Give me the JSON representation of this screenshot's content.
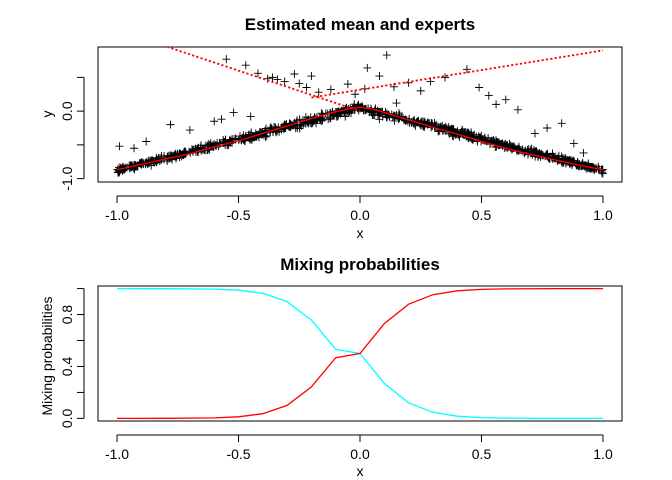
{
  "chart_data": [
    {
      "type": "scatter",
      "title": "Estimated mean and experts",
      "xlabel": "x",
      "ylabel": "y",
      "xlim": [
        -1.0,
        1.0
      ],
      "ylim": [
        -1.05,
        0.95
      ],
      "x_ticks": [
        -1.0,
        -0.5,
        0.0,
        0.5,
        1.0
      ],
      "x_tick_labels": [
        "-1.0",
        "-0.5",
        "0.0",
        "0.5",
        "1.0"
      ],
      "y_ticks": [
        -1.0,
        -0.5,
        0.0,
        0.5
      ],
      "y_tick_labels": [
        "-1.0",
        "",
        "0.0",
        ""
      ],
      "grid": false,
      "series": [
        {
          "kind": "points",
          "marker": "+",
          "color": "#000000",
          "description": "noisy observations concentrated along y = 0.05 - 0.95*|x| with scattered outliers",
          "outliers": [
            [
              -0.55,
              0.77
            ],
            [
              -0.47,
              0.68
            ],
            [
              -0.42,
              0.56
            ],
            [
              -0.38,
              0.48
            ],
            [
              -0.36,
              0.5
            ],
            [
              -0.34,
              0.47
            ],
            [
              -0.31,
              0.44
            ],
            [
              -0.27,
              0.55
            ],
            [
              -0.25,
              0.41
            ],
            [
              -0.22,
              0.35
            ],
            [
              -0.2,
              0.52
            ],
            [
              -0.17,
              0.28
            ],
            [
              -0.12,
              0.32
            ],
            [
              -0.05,
              0.4
            ],
            [
              0.03,
              0.64
            ],
            [
              0.08,
              0.52
            ],
            [
              0.11,
              0.83
            ],
            [
              0.14,
              0.36
            ],
            [
              0.2,
              0.42
            ],
            [
              0.25,
              0.3
            ],
            [
              0.29,
              0.44
            ],
            [
              0.35,
              0.5
            ],
            [
              0.44,
              0.62
            ],
            [
              0.49,
              0.35
            ],
            [
              0.53,
              0.23
            ],
            [
              0.56,
              0.1
            ],
            [
              0.6,
              0.17
            ],
            [
              0.65,
              0.02
            ],
            [
              0.77,
              -0.25
            ],
            [
              0.83,
              -0.18
            ],
            [
              0.88,
              -0.48
            ],
            [
              -0.52,
              -0.02
            ],
            [
              -0.57,
              -0.12
            ],
            [
              -0.78,
              -0.2
            ],
            [
              -0.93,
              -0.55
            ],
            [
              -0.99,
              -0.52
            ],
            [
              -0.88,
              -0.45
            ],
            [
              -0.7,
              -0.28
            ],
            [
              -0.6,
              -0.15
            ],
            [
              -0.45,
              -0.08
            ],
            [
              0.02,
              0.33
            ],
            [
              -0.02,
              0.25
            ],
            [
              0.15,
              0.12
            ],
            [
              0.92,
              -0.62
            ],
            [
              0.72,
              -0.33
            ]
          ]
        },
        {
          "kind": "line",
          "name": "",
          "color": "#ff0000",
          "style": "solid",
          "x": [
            -1.0,
            -0.9,
            -0.8,
            -0.7,
            -0.6,
            -0.5,
            -0.4,
            -0.3,
            -0.2,
            -0.1,
            -0.05,
            0.0,
            0.05,
            0.1,
            0.2,
            0.3,
            0.4,
            0.5,
            0.6,
            0.7,
            0.8,
            0.9,
            1.0
          ],
          "y": [
            -0.87,
            -0.79,
            -0.71,
            -0.63,
            -0.53,
            -0.44,
            -0.33,
            -0.22,
            -0.11,
            -0.01,
            0.03,
            0.06,
            0.03,
            -0.02,
            -0.13,
            -0.24,
            -0.34,
            -0.45,
            -0.55,
            -0.64,
            -0.72,
            -0.8,
            -0.87
          ]
        },
        {
          "kind": "line",
          "name": "",
          "color": "#ff0000",
          "style": "dotted",
          "x": [
            -1.0,
            -0.5,
            0.0
          ],
          "y": [
            1.2,
            0.6,
            0.0
          ]
        },
        {
          "kind": "line",
          "name": "",
          "color": "#ff0000",
          "style": "dotted",
          "x": [
            -0.2,
            0.4,
            1.0
          ],
          "y": [
            0.2,
            0.55,
            0.9
          ]
        }
      ]
    },
    {
      "type": "line",
      "title": "Mixing probabilities",
      "xlabel": "x",
      "ylabel": "Mixing probabilities",
      "xlim": [
        -1.0,
        1.0
      ],
      "ylim": [
        -0.02,
        1.02
      ],
      "x_ticks": [
        -1.0,
        -0.5,
        0.0,
        0.5,
        1.0
      ],
      "x_tick_labels": [
        "-1.0",
        "-0.5",
        "0.0",
        "0.5",
        "1.0"
      ],
      "y_ticks": [
        0.0,
        0.2,
        0.4,
        0.6,
        0.8,
        1.0
      ],
      "y_tick_labels": [
        "0.0",
        "",
        "0.4",
        "",
        "0.8",
        ""
      ],
      "grid": false,
      "series": [
        {
          "name": "",
          "color": "#00ffff",
          "x": [
            -1.0,
            -0.8,
            -0.6,
            -0.5,
            -0.4,
            -0.3,
            -0.2,
            -0.1,
            0.0,
            0.1,
            0.2,
            0.3,
            0.4,
            0.5,
            0.6,
            0.8,
            1.0
          ],
          "y": [
            1.0,
            0.999,
            0.996,
            0.988,
            0.964,
            0.9,
            0.757,
            0.532,
            0.5,
            0.27,
            0.12,
            0.047,
            0.017,
            0.006,
            0.002,
            0.0,
            0.0
          ]
        },
        {
          "name": "",
          "color": "#ff0000",
          "x": [
            -1.0,
            -0.8,
            -0.6,
            -0.5,
            -0.4,
            -0.3,
            -0.2,
            -0.1,
            0.0,
            0.1,
            0.2,
            0.3,
            0.4,
            0.5,
            0.6,
            0.8,
            1.0
          ],
          "y": [
            0.0,
            0.001,
            0.004,
            0.012,
            0.036,
            0.1,
            0.243,
            0.468,
            0.5,
            0.73,
            0.88,
            0.953,
            0.983,
            0.994,
            0.998,
            1.0,
            1.0
          ]
        }
      ]
    }
  ]
}
